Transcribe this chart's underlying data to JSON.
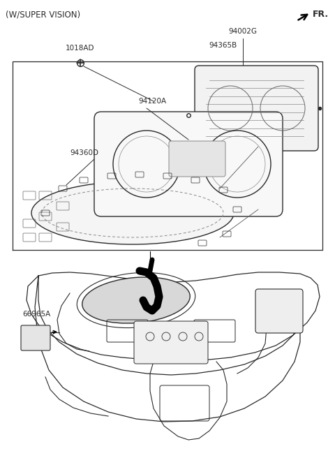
{
  "title": "(W/SUPER VISION)",
  "fr_label": "FR.",
  "bg": "#ffffff",
  "lc": "#2a2a2a",
  "tc": "#2a2a2a",
  "label_94002G": "94002G",
  "label_94365B": "94365B",
  "label_1018AD": "1018AD",
  "label_94120A": "94120A",
  "label_94360D": "94360D",
  "label_66965A": "66965A"
}
